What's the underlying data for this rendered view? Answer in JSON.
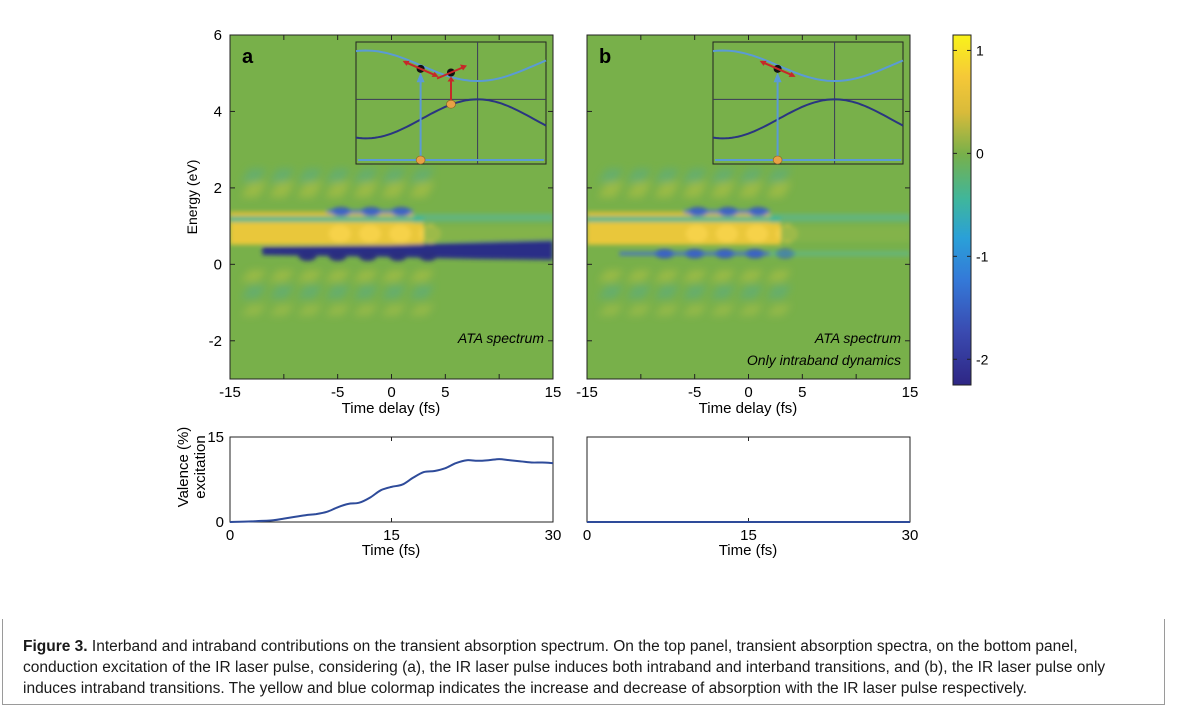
{
  "chart_data": [
    {
      "type": "heatmap",
      "panel_label": "a",
      "annotation": [
        "ATA spectrum"
      ],
      "xlabel": "Time delay (fs)",
      "ylabel": "Energy (eV)",
      "xlim": [
        -15,
        15
      ],
      "ylim": [
        -3,
        6
      ],
      "xticks": [
        -15,
        -10,
        -5,
        0,
        5,
        10,
        15
      ],
      "xticklabels": [
        "-15",
        "",
        "-5",
        "0",
        "5",
        "",
        "15"
      ],
      "yticks": [
        -2,
        0,
        2,
        4,
        6
      ],
      "features": [
        {
          "band": "positive_upper",
          "energy": 1.22,
          "x_start": -15,
          "x_end": 2,
          "sign": "+"
        },
        {
          "band": "negative_upper",
          "energy": 1.38,
          "x_start": -6,
          "x_end": 2,
          "sign": "-"
        },
        {
          "band": "positive_lower",
          "energy": 0.8,
          "x_start": -15,
          "x_end": 3,
          "sign": "+"
        },
        {
          "band": "negative_lower",
          "energy": 0.35,
          "x_start": -12,
          "x_end": 15,
          "sign": "-"
        }
      ],
      "inset": {
        "transitions": "interband + intraband"
      }
    },
    {
      "type": "heatmap",
      "panel_label": "b",
      "annotation": [
        "ATA spectrum",
        "Only intraband dynamics"
      ],
      "xlabel": "Time delay (fs)",
      "xlim": [
        -15,
        15
      ],
      "ylim": [
        -3,
        6
      ],
      "xticks": [
        -15,
        -10,
        -5,
        0,
        5,
        10,
        15
      ],
      "xticklabels": [
        "-15",
        "",
        "-5",
        "0",
        "5",
        "",
        "15"
      ],
      "features": [
        {
          "band": "positive_upper",
          "energy": 1.22,
          "x_start": -15,
          "x_end": 2,
          "sign": "+"
        },
        {
          "band": "negative_upper",
          "energy": 1.38,
          "x_start": -6,
          "x_end": 2,
          "sign": "-"
        },
        {
          "band": "positive_lower",
          "energy": 0.8,
          "x_start": -15,
          "x_end": 3,
          "sign": "+"
        },
        {
          "band": "negative_lower",
          "energy": 0.28,
          "x_start": -12,
          "x_end": 2,
          "sign": "-"
        }
      ],
      "inset": {
        "transitions": "intraband only"
      }
    },
    {
      "type": "colorbar",
      "ticks": [
        1,
        0,
        -1,
        -2
      ],
      "ticklabels": [
        "1",
        "0",
        "-1",
        "-2"
      ],
      "range": [
        -2.25,
        1.15
      ]
    },
    {
      "type": "line",
      "ylabel": "Valence (%) excitation",
      "xlabel": "Time (fs)",
      "xlim": [
        0,
        30
      ],
      "ylim": [
        0,
        15
      ],
      "xticks": [
        0,
        15,
        30
      ],
      "yticks": [
        0,
        15
      ],
      "x": [
        0,
        2,
        4,
        5,
        6,
        7,
        8,
        9,
        10,
        11,
        12,
        13,
        14,
        15,
        16,
        17,
        18,
        19,
        20,
        21,
        22,
        23,
        24,
        25,
        26,
        27,
        28,
        29,
        30
      ],
      "y": [
        0,
        0.1,
        0.3,
        0.6,
        0.9,
        1.2,
        1.4,
        1.8,
        2.6,
        3.2,
        3.4,
        4.3,
        5.6,
        6.2,
        6.6,
        7.8,
        8.8,
        9.0,
        9.5,
        10.4,
        10.9,
        10.8,
        10.9,
        11.1,
        10.9,
        10.7,
        10.5,
        10.5,
        10.4
      ],
      "color": "#2e4b9a"
    },
    {
      "type": "line",
      "xlabel": "Time (fs)",
      "xlim": [
        0,
        30
      ],
      "ylim": [
        0,
        15
      ],
      "xticks": [
        0,
        15,
        30
      ],
      "x": [
        0,
        30
      ],
      "y": [
        0,
        0
      ],
      "color": "#2e4b9a"
    }
  ],
  "caption": {
    "label": "Figure 3.",
    "text": " Interband and intraband contributions on the transient absorption spectrum. On the top panel, transient absorption spectra, on the bottom panel, conduction excitation of the IR laser pulse, considering (a), the IR laser pulse induces both intraband and interband transitions, and (b), the IR laser pulse only induces intraband transitions. The yellow and blue colormap indicates the increase and decrease of absorption with the IR laser pulse respectively."
  },
  "colors": {
    "background": "#78b04a",
    "positive": "#f2d035",
    "negative": "#2c2f87",
    "mid_blue": "#3d8ed6",
    "inset_band": "#5b9bd5",
    "inset_valence": "#2a3580",
    "electron": "#111111",
    "hole": "#e8a245",
    "arrow": "#c62828"
  }
}
